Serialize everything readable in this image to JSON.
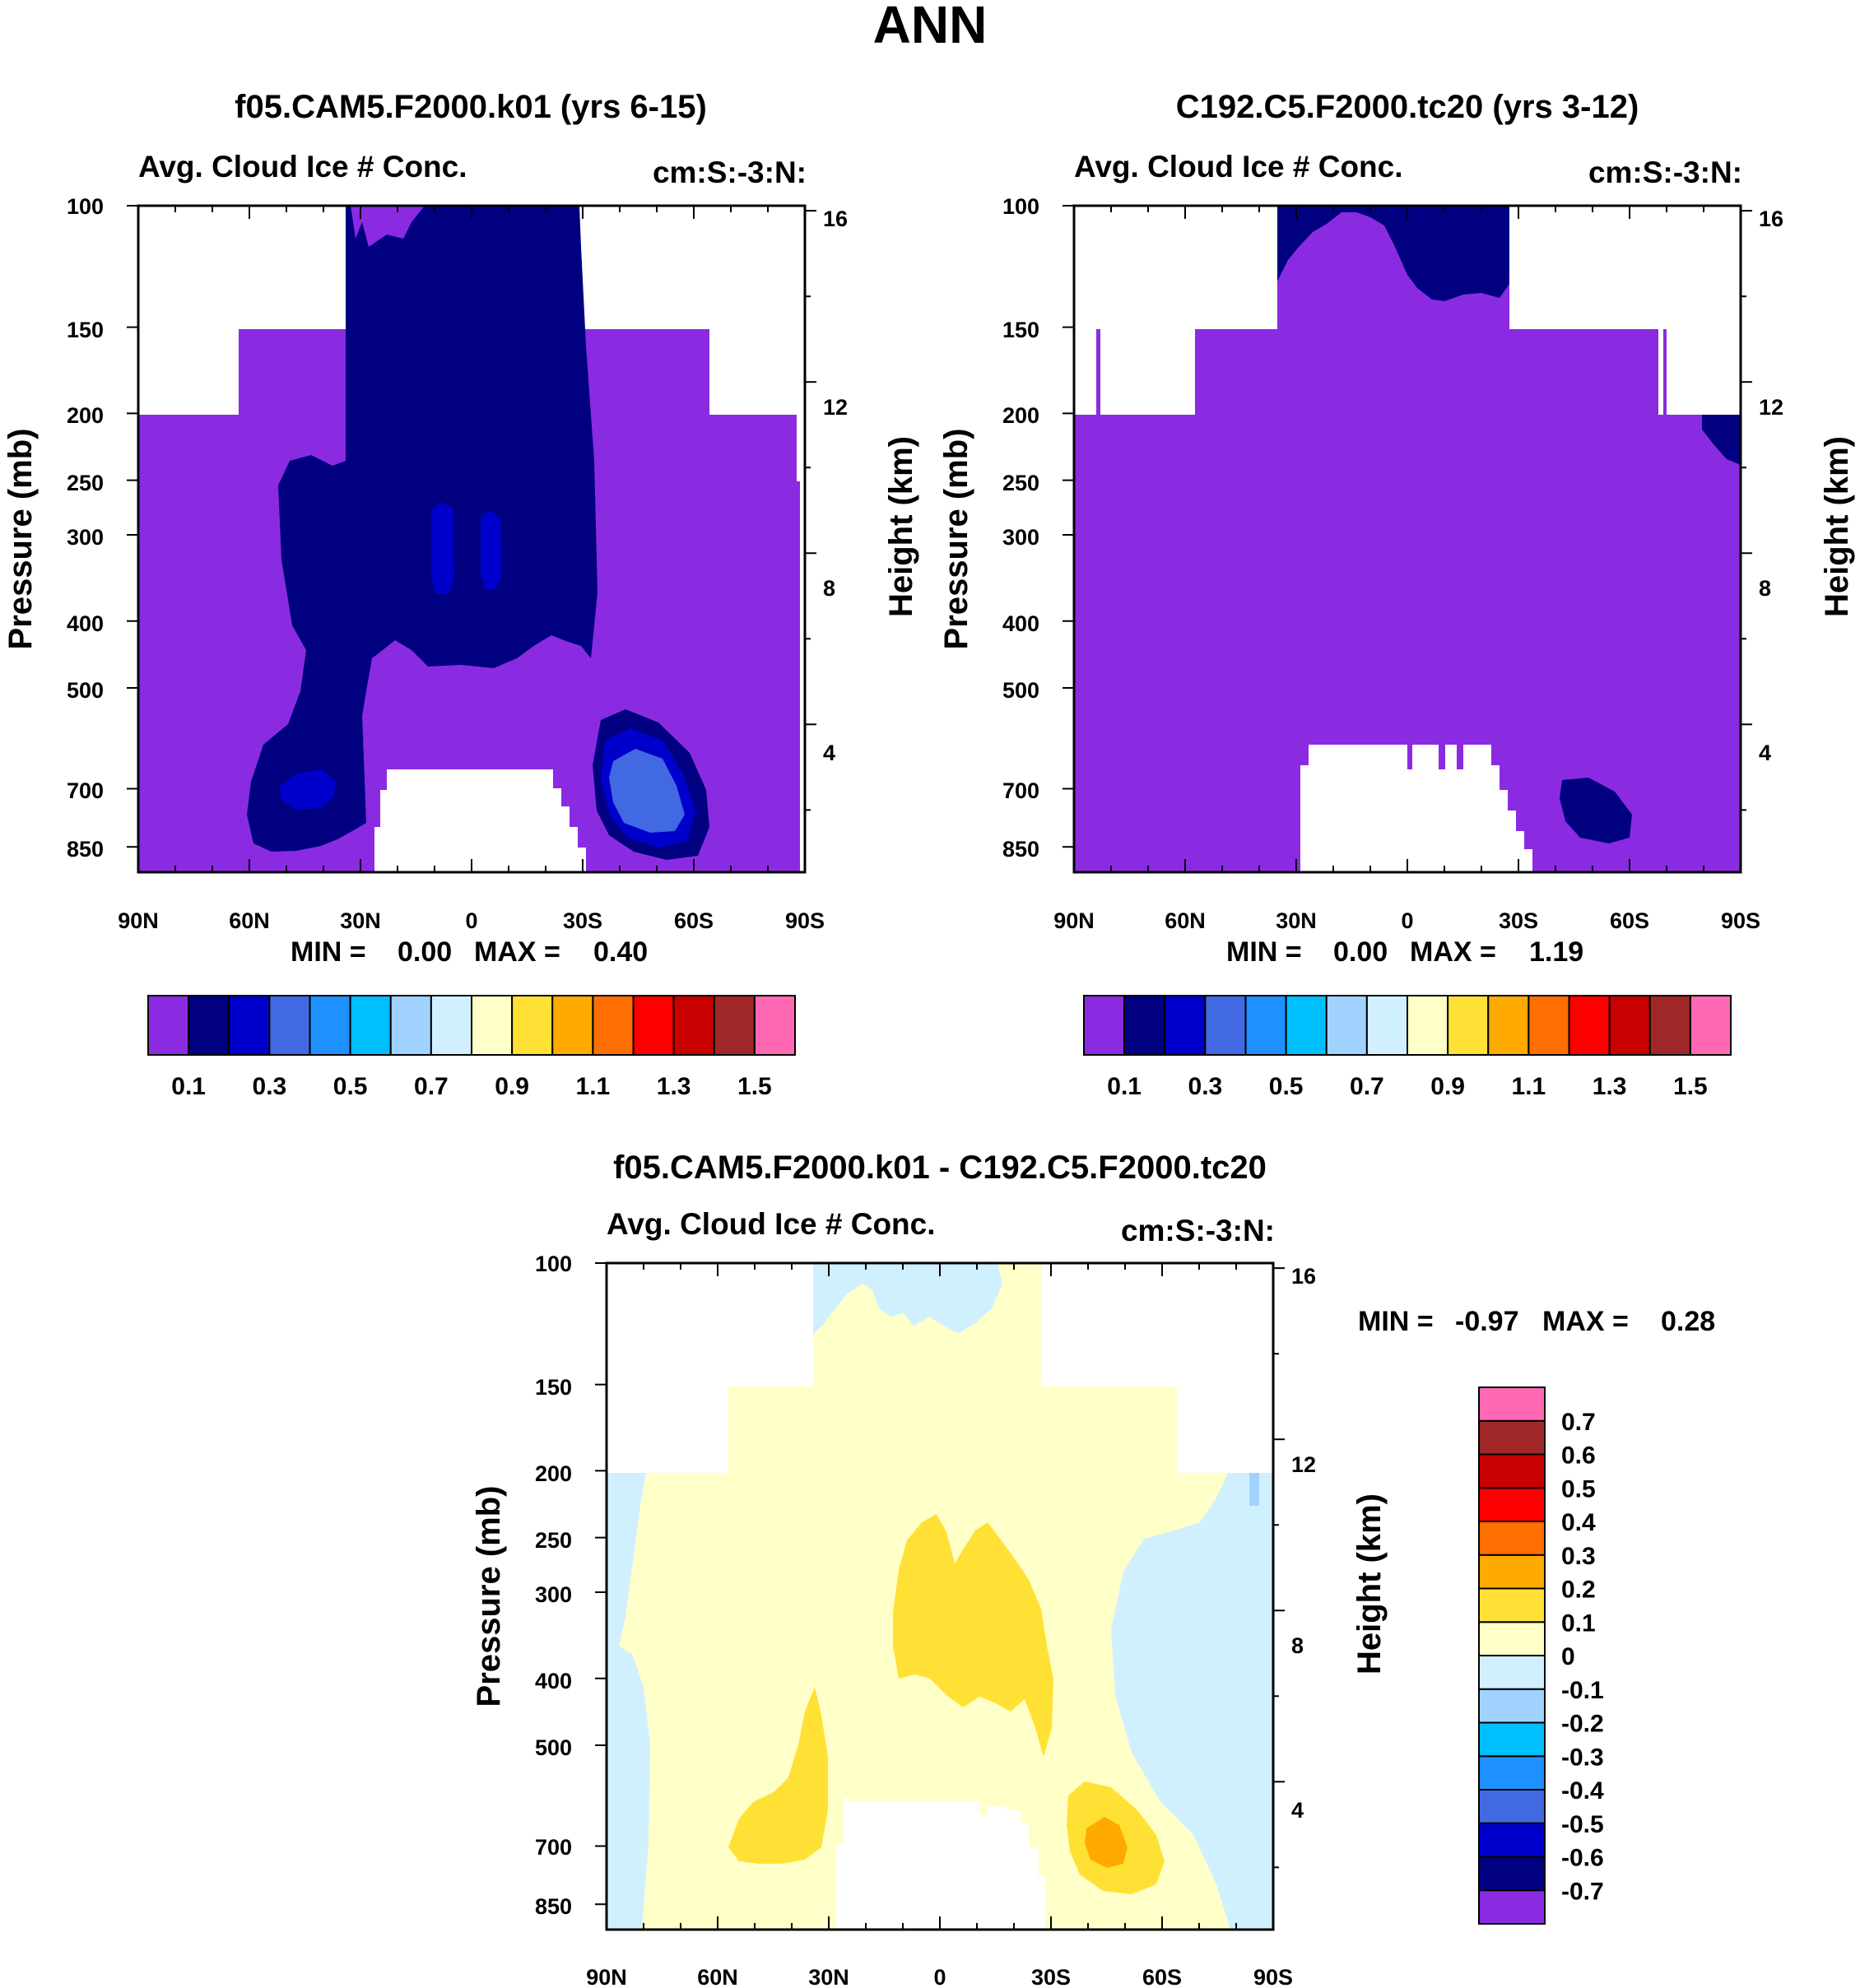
{
  "page_title": "ANN",
  "chart_data": [
    {
      "type": "contour",
      "title": "f05.CAM5.F2000.k01 (yrs 6-15)",
      "field_label": "Avg. Cloud Ice # Conc.",
      "units_label": "cm:S:-3:N:",
      "ylabel": "Pressure (mb)",
      "ylabel_right": "Height (km)",
      "xticks": [
        "90N",
        "60N",
        "30N",
        "0",
        "30S",
        "60S",
        "90S"
      ],
      "yticks": [
        "100",
        "150",
        "200",
        "250",
        "300",
        "400",
        "500",
        "700",
        "850"
      ],
      "pressure_values": [
        100,
        150,
        200,
        250,
        300,
        400,
        500,
        700,
        850
      ],
      "height_ticks": [
        "16",
        "12",
        "8",
        "4"
      ],
      "stats": {
        "min_label": "MIN =",
        "min_value": "0.00",
        "max_label": "MAX =",
        "max_value": "0.40"
      },
      "colorbar": {
        "colors": [
          "#8a2be2",
          "#000080",
          "#0000cd",
          "#4169e1",
          "#1e90ff",
          "#00bfff",
          "#a0d2ff",
          "#d1f0ff",
          "#ffffc8",
          "#ffe135",
          "#ffaa00",
          "#ff6e00",
          "#ff0000",
          "#c80000",
          "#a02828",
          "#ff69b4"
        ],
        "labels": [
          "0.1",
          "0.3",
          "0.5",
          "0.7",
          "0.9",
          "1.1",
          "1.3",
          "1.5"
        ]
      }
    },
    {
      "type": "contour",
      "title": "C192.C5.F2000.tc20 (yrs 3-12)",
      "field_label": "Avg. Cloud Ice # Conc.",
      "units_label": "cm:S:-3:N:",
      "ylabel": "Pressure (mb)",
      "ylabel_right": "Height (km)",
      "xticks": [
        "90N",
        "60N",
        "30N",
        "0",
        "30S",
        "60S",
        "90S"
      ],
      "yticks": [
        "100",
        "150",
        "200",
        "250",
        "300",
        "400",
        "500",
        "700",
        "850"
      ],
      "pressure_values": [
        100,
        150,
        200,
        250,
        300,
        400,
        500,
        700,
        850
      ],
      "height_ticks": [
        "16",
        "12",
        "8",
        "4"
      ],
      "stats": {
        "min_label": "MIN =",
        "min_value": "0.00",
        "max_label": "MAX =",
        "max_value": "1.19"
      },
      "colorbar": {
        "colors": [
          "#8a2be2",
          "#000080",
          "#0000cd",
          "#4169e1",
          "#1e90ff",
          "#00bfff",
          "#a0d2ff",
          "#d1f0ff",
          "#ffffc8",
          "#ffe135",
          "#ffaa00",
          "#ff6e00",
          "#ff0000",
          "#c80000",
          "#a02828",
          "#ff69b4"
        ],
        "labels": [
          "0.1",
          "0.3",
          "0.5",
          "0.7",
          "0.9",
          "1.1",
          "1.3",
          "1.5"
        ]
      }
    },
    {
      "type": "contour",
      "title": "f05.CAM5.F2000.k01 - C192.C5.F2000.tc20",
      "field_label": "Avg. Cloud Ice # Conc.",
      "units_label": "cm:S:-3:N:",
      "ylabel": "Pressure (mb)",
      "ylabel_right": "Height (km)",
      "xticks": [
        "90N",
        "60N",
        "30N",
        "0",
        "30S",
        "60S",
        "90S"
      ],
      "yticks": [
        "100",
        "150",
        "200",
        "250",
        "300",
        "400",
        "500",
        "700",
        "850"
      ],
      "pressure_values": [
        100,
        150,
        200,
        250,
        300,
        400,
        500,
        700,
        850
      ],
      "height_ticks": [
        "16",
        "12",
        "8",
        "4"
      ],
      "stats": {
        "min_label": "MIN =",
        "min_value": "-0.97",
        "max_label": "MAX =",
        "max_value": "0.28"
      },
      "colorbar": {
        "colors": [
          "#8a2be2",
          "#000080",
          "#0000cd",
          "#4169e1",
          "#1e90ff",
          "#00bfff",
          "#a0d2ff",
          "#d1f0ff",
          "#ffffc8",
          "#ffe135",
          "#ffaa00",
          "#ff6e00",
          "#ff0000",
          "#c80000",
          "#a02828",
          "#ff69b4"
        ],
        "labels": [
          "-0.7",
          "-0.6",
          "-0.5",
          "-0.4",
          "-0.3",
          "-0.2",
          "-0.1",
          "0",
          "0.1",
          "0.2",
          "0.3",
          "0.4",
          "0.5",
          "0.6",
          "0.7"
        ]
      }
    }
  ]
}
